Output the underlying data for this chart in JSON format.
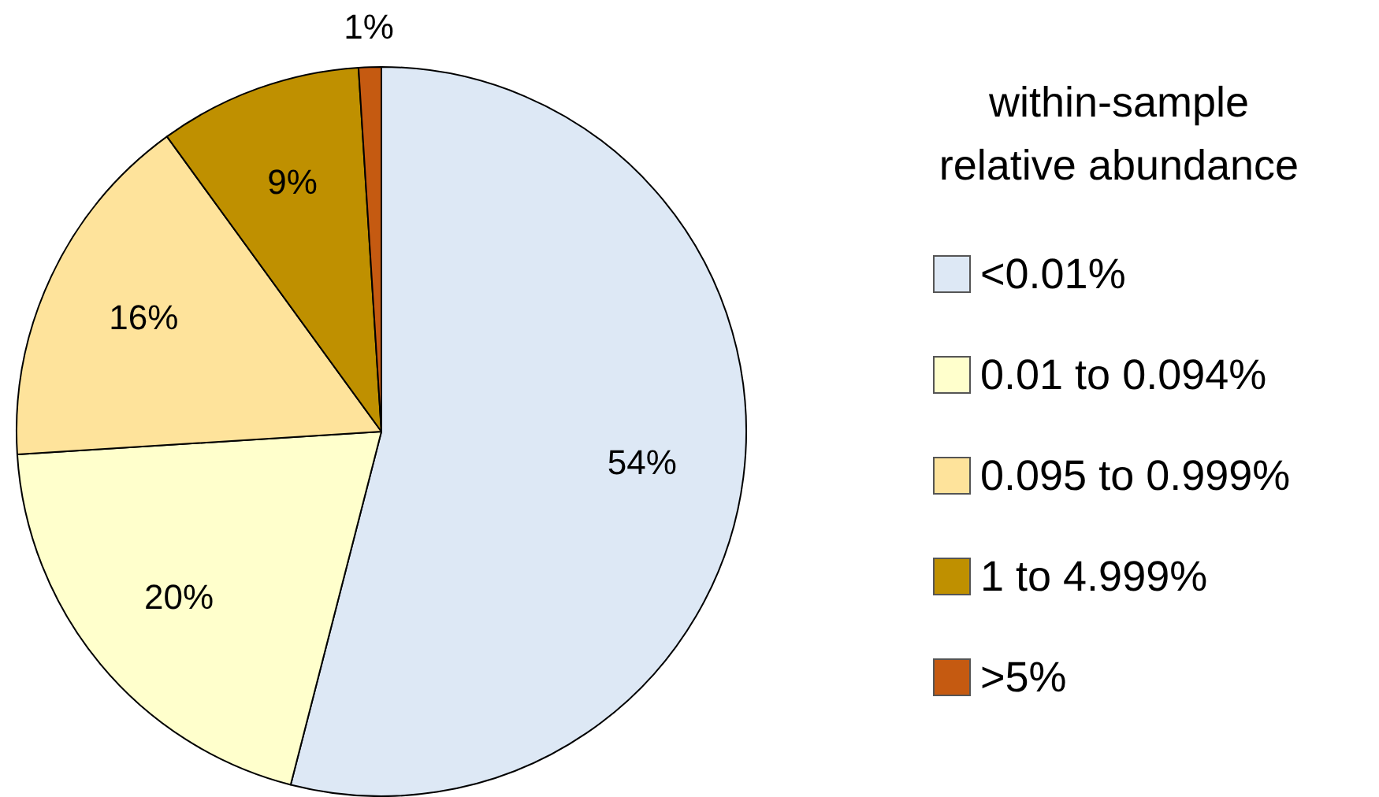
{
  "chart_data": {
    "type": "pie",
    "legend_title": "within-sample relative abundance",
    "legend": "right",
    "categories": [
      "<0.01%",
      "0.01 to 0.094%",
      "0.095 to 0.999%",
      "1 to 4.999%",
      ">5%"
    ],
    "values": [
      54,
      20,
      16,
      9,
      1
    ],
    "value_labels": [
      "54%",
      "20%",
      "16%",
      "9%",
      "1%"
    ],
    "colors": [
      "#dde8f5",
      "#ffffcc",
      "#fee39b",
      "#bf9000",
      "#c55a11"
    ]
  }
}
